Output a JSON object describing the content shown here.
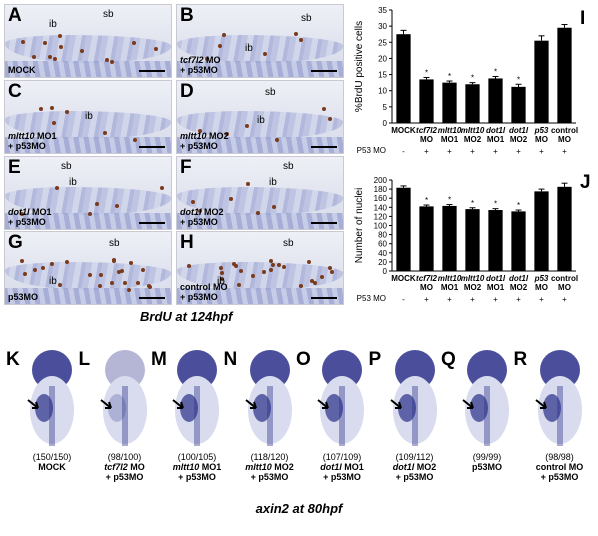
{
  "panels": [
    {
      "letter": "A",
      "cap1": "MOCK",
      "cap2": "",
      "labels": [
        "ib",
        "sb"
      ]
    },
    {
      "letter": "B",
      "cap1": "tcf7l2 MO",
      "cap2": "+ p53MO",
      "labels": [
        "ib",
        "sb"
      ]
    },
    {
      "letter": "C",
      "cap1": "mltt10 MO1",
      "cap2": "+ p53MO",
      "labels": [
        "ib"
      ]
    },
    {
      "letter": "D",
      "cap1": "mltt10 MO2",
      "cap2": "+ p53MO",
      "labels": [
        "sb",
        "ib"
      ]
    },
    {
      "letter": "E",
      "cap1": "dot1l MO1",
      "cap2": "+ p53MO",
      "labels": [
        "sb",
        "ib"
      ]
    },
    {
      "letter": "F",
      "cap1": "dot1l MO2",
      "cap2": "+ p53MO",
      "labels": [
        "sb",
        "ib"
      ]
    },
    {
      "letter": "G",
      "cap1": "p53MO",
      "cap2": "",
      "labels": [
        "sb",
        "ib"
      ]
    },
    {
      "letter": "H",
      "cap1": "control MO",
      "cap2": "+ p53MO",
      "labels": [
        "sb",
        "ib"
      ]
    }
  ],
  "brdu_caption": "BrdU at 124hpf",
  "chart_data": [
    {
      "panel": "I",
      "type": "bar",
      "categories": [
        "MOCK",
        "tcf7l2 MO",
        "mltt10 MO1",
        "mltt10 MO2",
        "dot1l MO1",
        "dot1l MO2",
        "p53 MO",
        "control MO"
      ],
      "values": [
        27.5,
        13.5,
        12.5,
        12,
        13.8,
        11.2,
        25.5,
        29.5
      ],
      "errors": [
        1.2,
        0.6,
        0.5,
        0.5,
        0.6,
        0.8,
        1.5,
        1.0
      ],
      "significant": [
        false,
        true,
        true,
        true,
        true,
        true,
        false,
        false
      ],
      "ylabel": "%BrdU positive cells",
      "ylim": [
        0,
        35
      ],
      "yticks": [
        0,
        5,
        10,
        15,
        20,
        25,
        30,
        35
      ],
      "p53_row_label": "P53 MO",
      "p53_row": [
        "-",
        "+",
        "+",
        "+",
        "+",
        "+",
        "+",
        "+"
      ]
    },
    {
      "panel": "J",
      "type": "bar",
      "categories": [
        "MOCK",
        "tcf7l2 MO",
        "mltt10 MO1",
        "mltt10 MO2",
        "dot1l MO1",
        "dot1l MO2",
        "p53 MO",
        "control MO"
      ],
      "values": [
        183,
        142,
        143,
        136,
        134,
        131,
        175,
        185
      ],
      "errors": [
        4,
        3,
        3,
        3,
        3,
        3,
        5,
        8
      ],
      "significant": [
        false,
        true,
        true,
        true,
        true,
        true,
        false,
        false
      ],
      "ylabel": "Number of nuclei",
      "ylim": [
        0,
        200
      ],
      "yticks": [
        0,
        20,
        40,
        60,
        80,
        100,
        120,
        140,
        160,
        180,
        200
      ],
      "p53_row_label": "P53 MO",
      "p53_row": [
        "-",
        "+",
        "+",
        "+",
        "+",
        "+",
        "+",
        "+"
      ]
    }
  ],
  "fish": [
    {
      "letter": "K",
      "count": "(150/150)",
      "cap1": "MOCK",
      "cap2": ""
    },
    {
      "letter": "L",
      "count": "(98/100)",
      "cap1": "tcf7l2 MO",
      "cap2": "+ p53MO"
    },
    {
      "letter": "M",
      "count": "(100/105)",
      "cap1": "mltt10 MO1",
      "cap2": "+ p53MO"
    },
    {
      "letter": "N",
      "count": "(118/120)",
      "cap1": "mltt10 MO2",
      "cap2": "+ p53MO"
    },
    {
      "letter": "O",
      "count": "(107/109)",
      "cap1": "dot1l MO1",
      "cap2": "+ p53MO"
    },
    {
      "letter": "P",
      "count": "(109/112)",
      "cap1": "dot1l MO2",
      "cap2": "+ p53MO"
    },
    {
      "letter": "Q",
      "count": "(99/99)",
      "cap1": "p53MO",
      "cap2": ""
    },
    {
      "letter": "R",
      "count": "(98/98)",
      "cap1": "control MO",
      "cap2": "+ p53MO"
    }
  ],
  "axin_caption": "axin2 at 80hpf",
  "colors": {
    "stain": "#2a2f8a",
    "brdu_dot": "#7a3b1c",
    "bar": "#000000"
  }
}
